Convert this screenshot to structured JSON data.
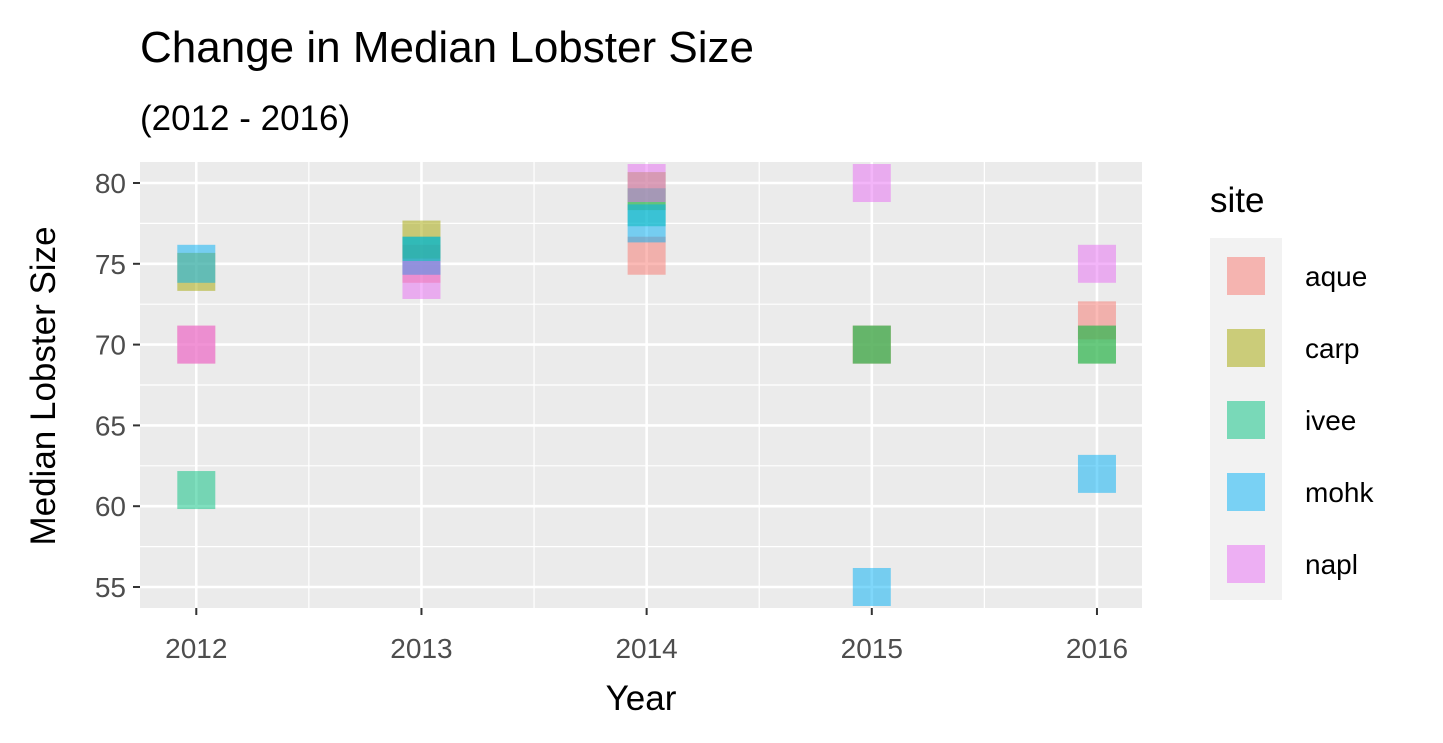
{
  "chart_data": {
    "type": "scatter",
    "title": "Change in Median Lobster Size",
    "subtitle": "(2012 - 2016)",
    "xlabel": "Year",
    "ylabel": "Median Lobster Size",
    "x_ticks": [
      "2012",
      "2013",
      "2014",
      "2015",
      "2016"
    ],
    "y_ticks": [
      "55",
      "60",
      "65",
      "70",
      "75",
      "80"
    ],
    "xlim": [
      2011.75,
      2016.2
    ],
    "ylim": [
      53.7,
      81.3
    ],
    "grid": true,
    "marker": "square",
    "legend": {
      "title": "site",
      "placement": "right"
    },
    "series": [
      {
        "name": "aque",
        "color": "#F8766D",
        "points": [
          [
            2012,
            70
          ],
          [
            2013,
            75
          ],
          [
            2014,
            75.5
          ],
          [
            2015,
            70
          ],
          [
            2016,
            71.5
          ]
        ]
      },
      {
        "name": "carp",
        "color": "#A3A500",
        "points": [
          [
            2012,
            74.5
          ],
          [
            2013,
            76.5
          ],
          [
            2014,
            79.5
          ],
          [
            2015,
            70
          ],
          [
            2016,
            70
          ]
        ]
      },
      {
        "name": "ivee",
        "color": "#00BF7D",
        "points": [
          [
            2012,
            61
          ],
          [
            2013,
            75.5
          ],
          [
            2014,
            78.5
          ],
          [
            2015,
            70
          ],
          [
            2016,
            70
          ]
        ]
      },
      {
        "name": "mohk",
        "color": "#00B0F6",
        "points": [
          [
            2012,
            75
          ],
          [
            2013,
            75.5
          ],
          [
            2014,
            77.5
          ],
          [
            2015,
            55
          ],
          [
            2016,
            62
          ]
        ]
      },
      {
        "name": "napl",
        "color": "#E76BF3",
        "points": [
          [
            2012,
            70
          ],
          [
            2013,
            74
          ],
          [
            2014,
            80
          ],
          [
            2015,
            80
          ],
          [
            2016,
            75
          ]
        ]
      }
    ]
  }
}
